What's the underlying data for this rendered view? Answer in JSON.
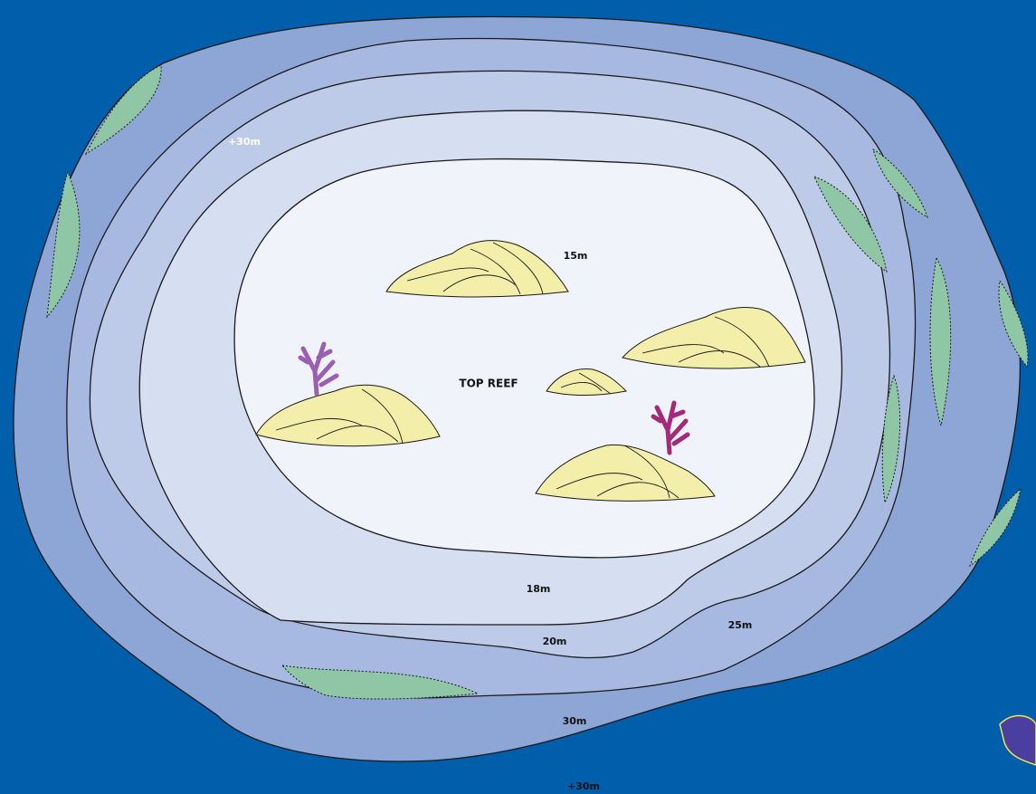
{
  "depth_labels": [
    "+30m",
    "15m",
    "TOP REEF",
    "18m",
    "20m",
    "25m",
    "30m",
    "+30m"
  ]
}
